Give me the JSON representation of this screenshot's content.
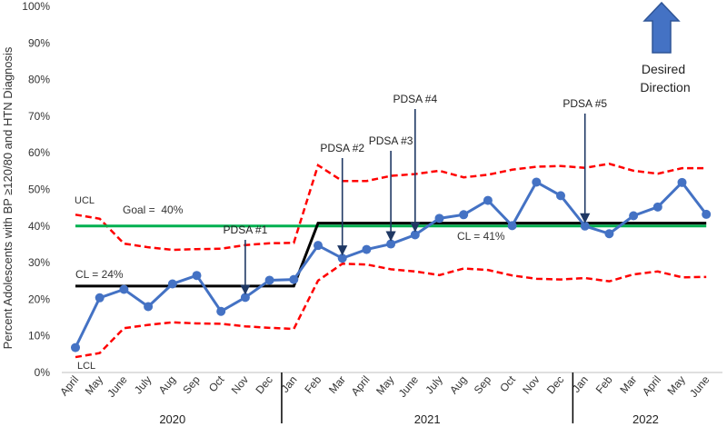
{
  "chart_data": {
    "type": "line",
    "title": "",
    "ylabel": "Percent Adolescents with BP ≥120/80 and HTN Diagnosis",
    "xlabel": "",
    "ylim": [
      0,
      100
    ],
    "y_ticks": [
      "0%",
      "10%",
      "20%",
      "30%",
      "40%",
      "50%",
      "60%",
      "70%",
      "80%",
      "90%",
      "100%"
    ],
    "categories": [
      "April",
      "May",
      "June",
      "July",
      "Aug",
      "Sep",
      "Oct",
      "Nov",
      "Dec",
      "Jan",
      "Feb",
      "Mar",
      "April",
      "May",
      "June",
      "July",
      "Aug",
      "Sep",
      "Oct",
      "Nov",
      "Dec",
      "Jan",
      "Feb",
      "Mar",
      "April",
      "May",
      "June"
    ],
    "years": [
      {
        "label": "2020",
        "start": 0,
        "end": 8
      },
      {
        "label": "2021",
        "start": 9,
        "end": 20
      },
      {
        "label": "2022",
        "start": 21,
        "end": 26
      }
    ],
    "series": [
      {
        "name": "Percent",
        "color": "#4472C4",
        "values": [
          6.8,
          20.4,
          22.7,
          18.0,
          24.2,
          26.5,
          16.7,
          20.5,
          25.2,
          25.4,
          34.7,
          31.2,
          33.6,
          35.1,
          37.6,
          42.1,
          43.1,
          47.0,
          40.1,
          52.0,
          48.3,
          40.0,
          37.9,
          42.8,
          45.2,
          51.9,
          43.2
        ]
      },
      {
        "name": "UCL",
        "color": "#FF0000",
        "values": [
          43.1,
          42.0,
          35.2,
          34.2,
          33.5,
          33.7,
          33.8,
          34.8,
          35.3,
          35.4,
          56.6,
          52.3,
          52.3,
          53.7,
          54.2,
          55.1,
          53.3,
          54.0,
          55.4,
          56.2,
          56.4,
          55.9,
          57.0,
          55.1,
          54.3,
          55.8,
          55.8
        ]
      },
      {
        "name": "LCL",
        "color": "#FF0000",
        "values": [
          4.2,
          5.3,
          12.1,
          13.0,
          13.7,
          13.4,
          13.3,
          12.6,
          12.2,
          11.9,
          25.1,
          29.7,
          29.5,
          28.2,
          27.6,
          26.6,
          28.4,
          28.0,
          26.5,
          25.6,
          25.4,
          25.8,
          24.9,
          26.8,
          27.6,
          26.0,
          26.1
        ]
      }
    ],
    "center_line": {
      "color": "#000000",
      "segments": [
        {
          "from": 0,
          "to": 9,
          "value": 23.6
        },
        {
          "from": 10,
          "to": 26,
          "value": 40.8
        }
      ]
    },
    "goal": {
      "value": 40,
      "color": "#00B050"
    },
    "annotations": {
      "ucl": "UCL",
      "lcl": "LCL",
      "goal": "Goal =  40%",
      "cl_before": "CL = 24%",
      "cl_after": "CL = 41%",
      "desired_line1": "Desired",
      "desired_line2": "Direction"
    },
    "pdsa": [
      {
        "label": "PDSA #1",
        "index": 7
      },
      {
        "label": "PDSA #2",
        "index": 11
      },
      {
        "label": "PDSA #3",
        "index": 13
      },
      {
        "label": "PDSA #4",
        "index": 14
      },
      {
        "label": "PDSA #5",
        "index": 21
      }
    ]
  },
  "colors": {
    "arrow": "#1F3864",
    "up_arrow_fill": "#4472C4",
    "up_arrow_stroke": "#2F5597"
  }
}
